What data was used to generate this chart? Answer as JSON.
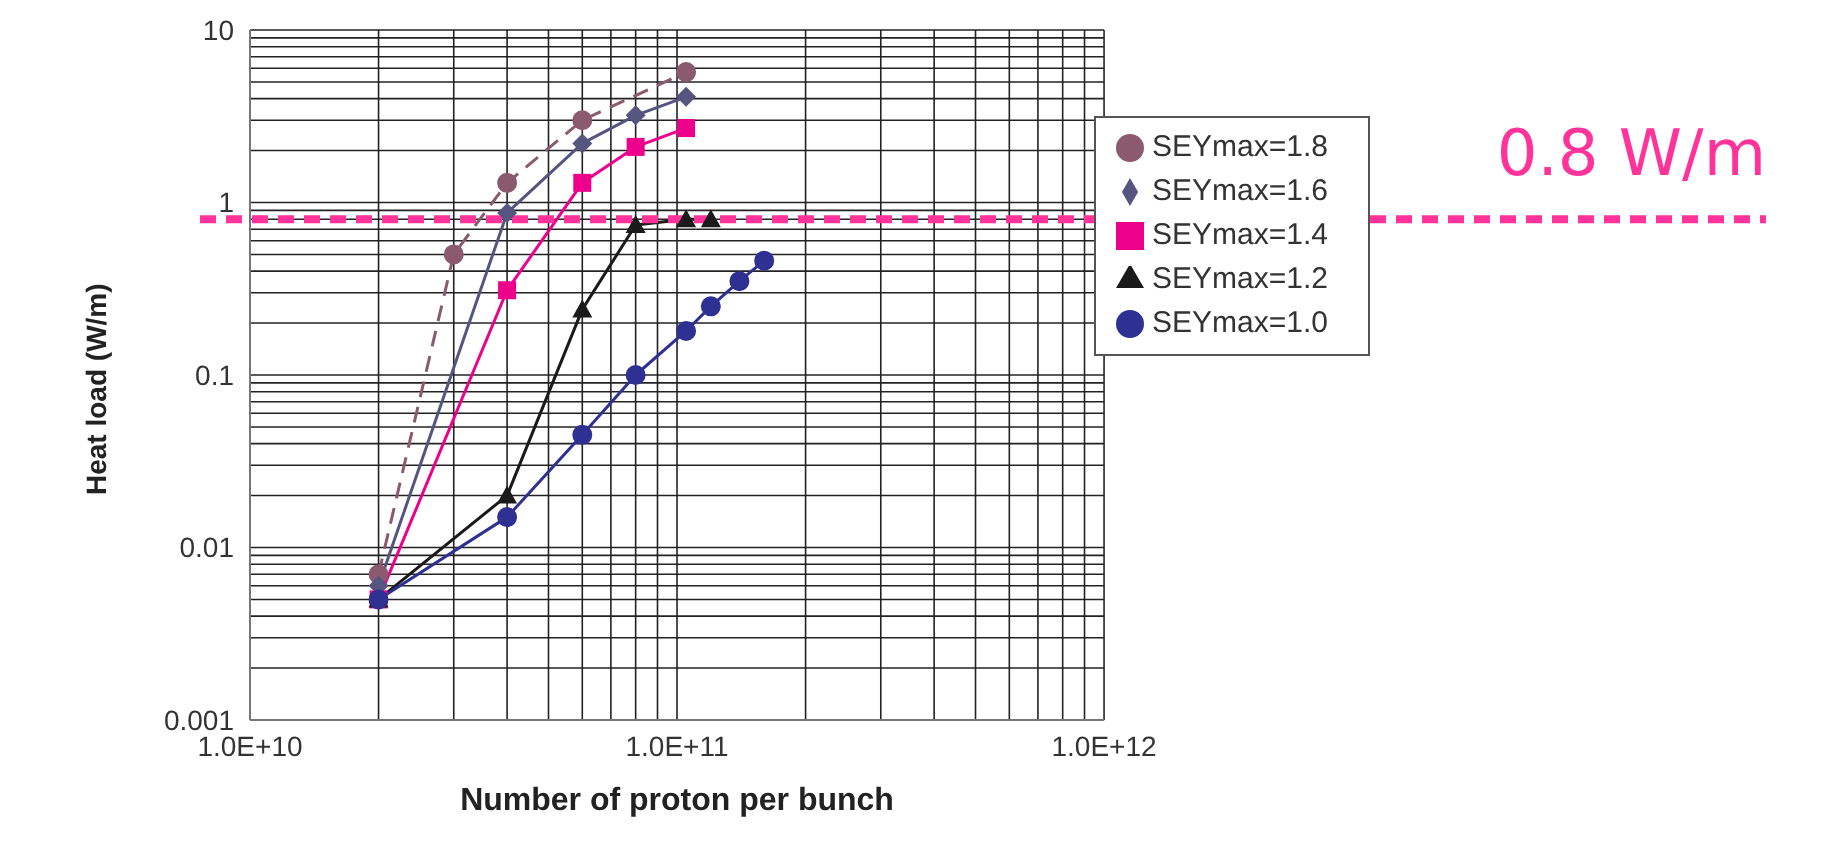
{
  "chart_data": {
    "type": "line",
    "xlabel": "Number of proton per bunch",
    "ylabel": "Heat load (W/m)",
    "log": "xy",
    "grid": true,
    "legend": "right",
    "xlim": [
      10000000000.0,
      1000000000000.0
    ],
    "xticks": [
      {
        "value": 10000000000.0,
        "label": "1.0E+10"
      },
      {
        "value": 100000000000.0,
        "label": "1.0E+11"
      },
      {
        "value": 1000000000000.0,
        "label": "1.0E+12"
      }
    ],
    "ylim": [
      0.001,
      10
    ],
    "yticks": [
      0.001,
      0.01,
      0.1,
      1,
      10
    ],
    "series": [
      {
        "name": "SEYmax=1.8",
        "color": "#8b5a6e",
        "marker": "circle",
        "line_style": "dashed",
        "x": [
          20000000000.0,
          30000000000.0,
          40000000000.0,
          60000000000.0,
          105000000000.0
        ],
        "values": [
          0.007,
          0.5,
          1.3,
          3.0,
          5.7
        ]
      },
      {
        "name": "SEYmax=1.6",
        "color": "#555580",
        "marker": "diamond",
        "line_style": "solid",
        "x": [
          20000000000.0,
          40000000000.0,
          60000000000.0,
          80000000000.0,
          105000000000.0
        ],
        "values": [
          0.006,
          0.87,
          2.2,
          3.2,
          4.1
        ]
      },
      {
        "name": "SEYmax=1.4",
        "color": "#ec008c",
        "marker": "square",
        "line_style": "solid",
        "x": [
          20000000000.0,
          40000000000.0,
          60000000000.0,
          80000000000.0,
          105000000000.0
        ],
        "values": [
          0.005,
          0.31,
          1.3,
          2.1,
          2.7
        ]
      },
      {
        "name": "SEYmax=1.2",
        "color": "#1a1a1a",
        "marker": "triangle",
        "line_style": "solid",
        "x": [
          20000000000.0,
          40000000000.0,
          60000000000.0,
          80000000000.0,
          105000000000.0,
          120000000000.0
        ],
        "values": [
          0.005,
          0.02,
          0.24,
          0.74,
          0.8,
          0.8
        ]
      },
      {
        "name": "SEYmax=1.0",
        "color": "#2e3192",
        "marker": "circle",
        "line_style": "solid",
        "x": [
          20000000000.0,
          40000000000.0,
          60000000000.0,
          80000000000.0,
          105000000000.0,
          120000000000.0,
          140000000000.0,
          160000000000.0
        ],
        "values": [
          0.005,
          0.015,
          0.045,
          0.1,
          0.18,
          0.25,
          0.35,
          0.46
        ]
      }
    ],
    "ref_lines": [
      {
        "axis": "y",
        "value": 0.8,
        "label": "0.8 W/m",
        "color": "#ff3399",
        "line_style": "dashed"
      }
    ]
  }
}
